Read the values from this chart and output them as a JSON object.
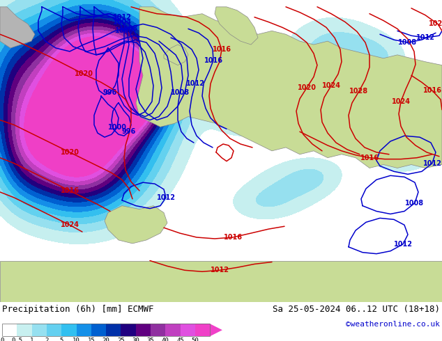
{
  "title_left": "Precipitation (6h) [mm] ECMWF",
  "title_right": "Sa 25-05-2024 06..12 UTC (18+18)",
  "credit": "©weatheronline.co.uk",
  "colorbar_tick_labels": [
    "0",
    "0.5",
    "1",
    "2",
    "5",
    "10",
    "15",
    "20",
    "25",
    "30",
    "35",
    "40",
    "45",
    "50"
  ],
  "colorbar_colors": [
    "#ffffff",
    "#c8f0f0",
    "#96e0f0",
    "#64d0f0",
    "#32c0f0",
    "#1490e8",
    "#0060d0",
    "#0030a8",
    "#200080",
    "#600080",
    "#9030a0",
    "#c040c0",
    "#e050e0",
    "#f040c8"
  ],
  "land_color": "#c8dc96",
  "sea_color": "#e8e8e8",
  "ocean_color": "#d8eef8",
  "bottom_bg": "#d0d0d0",
  "label_color": "#000000",
  "credit_color": "#0000cc",
  "blue_contour": "#0000cc",
  "red_contour": "#cc0000",
  "fig_width": 6.34,
  "fig_height": 4.9
}
